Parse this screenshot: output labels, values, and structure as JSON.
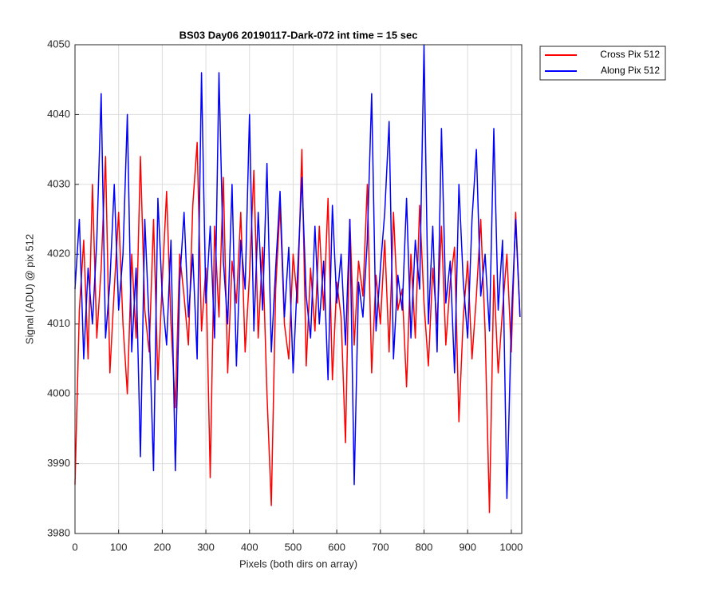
{
  "chart_data": {
    "type": "line",
    "title": "BS03 Day06 20190117-Dark-072 int time = 15 sec",
    "xlabel": "Pixels (both dirs on array)",
    "ylabel": "Signal (ADU) @ pix 512",
    "x": [
      0,
      10,
      20,
      30,
      40,
      50,
      60,
      70,
      80,
      90,
      100,
      110,
      120,
      130,
      140,
      150,
      160,
      170,
      180,
      190,
      200,
      210,
      220,
      230,
      240,
      250,
      260,
      270,
      280,
      290,
      300,
      310,
      320,
      330,
      340,
      350,
      360,
      370,
      380,
      390,
      400,
      410,
      420,
      430,
      440,
      450,
      460,
      470,
      480,
      490,
      500,
      510,
      520,
      530,
      540,
      550,
      560,
      570,
      580,
      590,
      600,
      610,
      620,
      630,
      640,
      650,
      660,
      670,
      680,
      690,
      700,
      710,
      720,
      730,
      740,
      750,
      760,
      770,
      780,
      790,
      800,
      810,
      820,
      830,
      840,
      850,
      860,
      870,
      880,
      890,
      900,
      910,
      920,
      930,
      940,
      950,
      960,
      970,
      980,
      990,
      1000,
      1010,
      1020
    ],
    "series": [
      {
        "name": "Cross Pix 512",
        "color": "#ff0000",
        "values": [
          3987,
          4012,
          4022,
          4005,
          4030,
          4008,
          4018,
          4034,
          4003,
          4015,
          4026,
          4010,
          4000,
          4020,
          4008,
          4034,
          4012,
          4006,
          4025,
          4002,
          4016,
          4029,
          4010,
          3998,
          4020,
          4014,
          4007,
          4027,
          4036,
          4009,
          4018,
          3988,
          4024,
          4011,
          4031,
          4003,
          4019,
          4013,
          4026,
          4006,
          4017,
          4032,
          4008,
          4021,
          4000,
          3984,
          4015,
          4027,
          4010,
          4005,
          4020,
          4013,
          4035,
          4004,
          4018,
          4009,
          4024,
          4012,
          4028,
          4002,
          4016,
          4011,
          3993,
          4025,
          4007,
          4019,
          4014,
          4030,
          4003,
          4017,
          4010,
          4022,
          4006,
          4026,
          4012,
          4015,
          4001,
          4020,
          4008,
          4027,
          4013,
          4004,
          4018,
          4010,
          4024,
          4007,
          4016,
          4021,
          3996,
          4011,
          4019,
          4005,
          4014,
          4025,
          4009,
          3983,
          4017,
          4003,
          4012,
          4020,
          4006,
          4026,
          4011
        ]
      },
      {
        "name": "Along Pix 512",
        "color": "#0000ff",
        "values": [
          4015,
          4025,
          4005,
          4018,
          4010,
          4022,
          4043,
          4008,
          4016,
          4030,
          4012,
          4020,
          4040,
          4006,
          4018,
          3991,
          4025,
          4010,
          3989,
          4028,
          4014,
          4007,
          4022,
          3989,
          4016,
          4026,
          4011,
          4020,
          4005,
          4046,
          4013,
          4024,
          4008,
          4046,
          4019,
          4010,
          4030,
          4004,
          4022,
          4015,
          4040,
          4009,
          4026,
          4012,
          4033,
          4006,
          4018,
          4029,
          4011,
          4021,
          4003,
          4017,
          4031,
          4014,
          4008,
          4024,
          4010,
          4019,
          4002,
          4027,
          4013,
          4020,
          4007,
          4025,
          3987,
          4016,
          4011,
          4022,
          4043,
          4009,
          4018,
          4026,
          4039,
          4005,
          4017,
          4012,
          4028,
          4008,
          4022,
          4015,
          4050,
          4010,
          4024,
          4006,
          4038,
          4013,
          4019,
          4003,
          4030,
          4016,
          4008,
          4025,
          4035,
          4014,
          4020,
          4009,
          4038,
          4012,
          4022,
          3985,
          4010,
          4025,
          4011
        ]
      }
    ],
    "xlim": [
      0,
      1024
    ],
    "xticks": [
      0,
      100,
      200,
      300,
      400,
      500,
      600,
      700,
      800,
      900,
      1000
    ],
    "ylim": [
      3980,
      4050
    ],
    "yticks": [
      3980,
      3990,
      4000,
      4010,
      4020,
      4030,
      4040,
      4050
    ],
    "grid": true,
    "legend": "northeastoutside"
  }
}
